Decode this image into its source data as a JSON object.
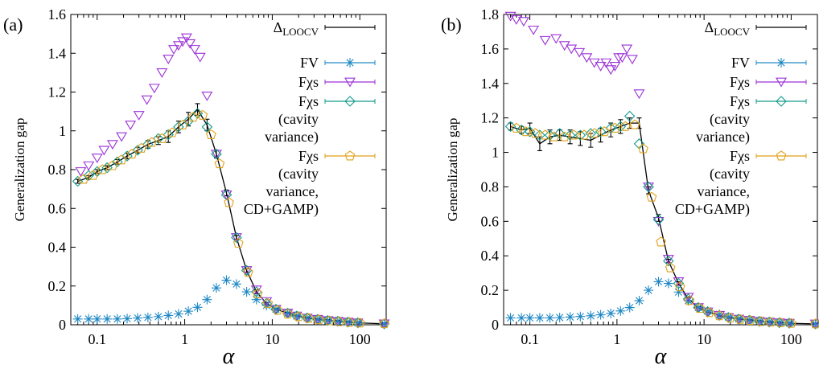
{
  "colors": {
    "loocv": "#000000",
    "fv": "#1f88c4",
    "fxs": "#9b31d6",
    "fxs_cavity": "#129b8a",
    "fxs_cdgamp": "#e2a11a"
  },
  "chart_data": [
    {
      "type": "scatter",
      "panel_label": "(a)",
      "title": "",
      "xlabel": "α",
      "ylabel": "Generalization gap",
      "xscale": "log",
      "xlim": [
        0.05,
        200
      ],
      "ylim": [
        0,
        1.6
      ],
      "xticks": [
        {
          "v": 0.1,
          "label": "0.1"
        },
        {
          "v": 1,
          "label": "1"
        },
        {
          "v": 10,
          "label": "10"
        },
        {
          "v": 100,
          "label": "100"
        }
      ],
      "yticks": [
        {
          "v": 0,
          "label": "0"
        },
        {
          "v": 0.2,
          "label": "0.2"
        },
        {
          "v": 0.4,
          "label": "0.4"
        },
        {
          "v": 0.6,
          "label": "0.6"
        },
        {
          "v": 0.8,
          "label": "0.8"
        },
        {
          "v": 1,
          "label": "1"
        },
        {
          "v": 1.2,
          "label": "1.2"
        },
        {
          "v": 1.4,
          "label": "1.4"
        },
        {
          "v": 1.6,
          "label": "1.6"
        }
      ],
      "grid": false,
      "legend_position": "top-right",
      "series": [
        {
          "name": "ΔLOOCV",
          "legend_lines": [
            "Δ",
            "LOOCV"
          ],
          "key": "loocv",
          "marker": "line",
          "x": [
            0.06,
            0.08,
            0.1,
            0.13,
            0.17,
            0.22,
            0.29,
            0.38,
            0.5,
            0.65,
            0.85,
            1.1,
            1.4,
            1.8,
            2.3,
            3,
            3.9,
            5.1,
            6.6,
            8.6,
            11,
            15,
            19,
            25,
            33,
            43,
            56,
            73,
            95,
            190
          ],
          "y": [
            0.74,
            0.76,
            0.79,
            0.81,
            0.84,
            0.87,
            0.9,
            0.93,
            0.95,
            0.97,
            1.02,
            1.06,
            1.11,
            1.03,
            0.88,
            0.68,
            0.45,
            0.28,
            0.17,
            0.11,
            0.08,
            0.06,
            0.045,
            0.035,
            0.028,
            0.022,
            0.018,
            0.014,
            0.01,
            0.005
          ],
          "err": [
            0.01,
            0.01,
            0.01,
            0.01,
            0.012,
            0.015,
            0.015,
            0.02,
            0.02,
            0.03,
            0.03,
            0.035,
            0.03,
            0.03,
            0.02,
            0.015,
            0.01,
            0.01,
            0.01,
            0.005,
            0.005,
            0.005,
            0.005,
            0.005,
            0.005,
            0.005,
            0.005,
            0.005,
            0.005,
            0.005
          ]
        },
        {
          "name": "FV",
          "legend_lines": [
            "FV"
          ],
          "key": "fv",
          "marker": "star",
          "x": [
            0.06,
            0.08,
            0.1,
            0.13,
            0.17,
            0.22,
            0.29,
            0.38,
            0.5,
            0.65,
            0.85,
            1.1,
            1.4,
            1.8,
            2.3,
            3,
            3.9,
            5.1,
            6.6,
            8.6,
            11,
            15,
            19,
            25,
            33,
            43,
            56,
            73,
            95,
            190
          ],
          "y": [
            0.03,
            0.03,
            0.03,
            0.03,
            0.03,
            0.032,
            0.035,
            0.038,
            0.042,
            0.048,
            0.056,
            0.07,
            0.09,
            0.13,
            0.19,
            0.23,
            0.21,
            0.17,
            0.13,
            0.1,
            0.08,
            0.06,
            0.045,
            0.035,
            0.028,
            0.022,
            0.018,
            0.014,
            0.01,
            0.005
          ]
        },
        {
          "name": "Fχs",
          "legend_lines": [
            "Fχs"
          ],
          "key": "fxs",
          "marker": "triangle-down",
          "x": [
            0.065,
            0.08,
            0.1,
            0.12,
            0.15,
            0.19,
            0.24,
            0.3,
            0.37,
            0.45,
            0.55,
            0.65,
            0.75,
            0.85,
            0.95,
            1.05,
            1.15,
            1.3,
            1.5,
            1.8,
            2.3,
            3,
            3.9,
            5.1,
            6.6,
            8.6,
            11,
            15,
            19,
            25,
            33,
            43,
            56,
            73,
            95,
            190
          ],
          "y": [
            0.79,
            0.82,
            0.86,
            0.9,
            0.93,
            0.97,
            1.03,
            1.08,
            1.16,
            1.22,
            1.3,
            1.37,
            1.42,
            1.44,
            1.46,
            1.48,
            1.45,
            1.42,
            1.38,
            1.18,
            0.88,
            0.67,
            0.45,
            0.28,
            0.18,
            0.12,
            0.08,
            0.06,
            0.045,
            0.035,
            0.028,
            0.022,
            0.018,
            0.014,
            0.01,
            0.005
          ]
        },
        {
          "name": "Fχs (cavity variance)",
          "legend_lines": [
            "Fχs",
            "(cavity",
            "variance)"
          ],
          "key": "fxs_cavity",
          "marker": "diamond",
          "x": [
            0.06,
            0.08,
            0.1,
            0.13,
            0.17,
            0.22,
            0.29,
            0.38,
            0.5,
            0.65,
            0.85,
            1.1,
            1.4,
            1.8,
            2.3,
            3,
            3.9,
            5.1,
            6.6,
            8.6,
            11,
            15,
            19,
            25,
            33,
            43,
            56,
            73,
            95,
            190
          ],
          "y": [
            0.74,
            0.77,
            0.79,
            0.81,
            0.84,
            0.87,
            0.9,
            0.93,
            0.96,
            0.98,
            1.02,
            1.05,
            1.09,
            1.02,
            0.88,
            0.67,
            0.45,
            0.28,
            0.17,
            0.11,
            0.08,
            0.06,
            0.045,
            0.035,
            0.028,
            0.022,
            0.018,
            0.014,
            0.01,
            0.005
          ]
        },
        {
          "name": "Fχs (cavity variance, CD+GAMP)",
          "legend_lines": [
            "Fχs",
            "(cavity",
            "variance,",
            "CD+GAMP)"
          ],
          "key": "fxs_cdgamp",
          "marker": "pentagon",
          "x": [
            0.07,
            0.09,
            0.115,
            0.15,
            0.19,
            0.25,
            0.32,
            0.42,
            0.55,
            0.72,
            0.95,
            1.25,
            1.6,
            2.0,
            2.5,
            3.2,
            4.1,
            5.3,
            6.8,
            8.9,
            11.5,
            15,
            20,
            26,
            34,
            45,
            58,
            76,
            100,
            190
          ],
          "y": [
            0.75,
            0.77,
            0.8,
            0.82,
            0.85,
            0.88,
            0.91,
            0.94,
            0.96,
            0.99,
            1.03,
            1.07,
            1.08,
            0.98,
            0.83,
            0.63,
            0.42,
            0.27,
            0.16,
            0.11,
            0.075,
            0.055,
            0.042,
            0.033,
            0.026,
            0.02,
            0.016,
            0.012,
            0.009,
            0.005
          ]
        }
      ]
    },
    {
      "type": "scatter",
      "panel_label": "(b)",
      "title": "",
      "xlabel": "α",
      "ylabel": "Generalization gap",
      "xscale": "log",
      "xlim": [
        0.05,
        200
      ],
      "ylim": [
        0,
        1.8
      ],
      "xticks": [
        {
          "v": 0.1,
          "label": "0.1"
        },
        {
          "v": 1,
          "label": "1"
        },
        {
          "v": 10,
          "label": "10"
        },
        {
          "v": 100,
          "label": "100"
        }
      ],
      "yticks": [
        {
          "v": 0,
          "label": "0"
        },
        {
          "v": 0.2,
          "label": "0.2"
        },
        {
          "v": 0.4,
          "label": "0.4"
        },
        {
          "v": 0.6,
          "label": "0.6"
        },
        {
          "v": 0.8,
          "label": "0.8"
        },
        {
          "v": 1,
          "label": "1"
        },
        {
          "v": 1.2,
          "label": "1.2"
        },
        {
          "v": 1.4,
          "label": "1.4"
        },
        {
          "v": 1.6,
          "label": "1.6"
        },
        {
          "v": 1.8,
          "label": "1.8"
        }
      ],
      "grid": false,
      "legend_position": "top-right",
      "series": [
        {
          "name": "ΔLOOCV",
          "legend_lines": [
            "Δ",
            "LOOCV"
          ],
          "key": "loocv",
          "marker": "line",
          "x": [
            0.06,
            0.08,
            0.1,
            0.13,
            0.17,
            0.22,
            0.29,
            0.38,
            0.5,
            0.65,
            0.85,
            1.1,
            1.4,
            1.8,
            2.3,
            3,
            3.9,
            5.1,
            6.6,
            8.6,
            11,
            15,
            19,
            25,
            33,
            43,
            56,
            73,
            95,
            190
          ],
          "y": [
            1.15,
            1.13,
            1.14,
            1.05,
            1.09,
            1.1,
            1.09,
            1.08,
            1.07,
            1.1,
            1.13,
            1.15,
            1.17,
            1.17,
            0.78,
            0.62,
            0.37,
            0.24,
            0.15,
            0.1,
            0.075,
            0.055,
            0.042,
            0.033,
            0.026,
            0.02,
            0.016,
            0.012,
            0.009,
            0.005
          ],
          "err": [
            0.02,
            0.02,
            0.03,
            0.04,
            0.04,
            0.03,
            0.04,
            0.04,
            0.04,
            0.04,
            0.04,
            0.04,
            0.03,
            0.03,
            0.02,
            0.02,
            0.01,
            0.01,
            0.01,
            0.005,
            0.005,
            0.005,
            0.005,
            0.005,
            0.005,
            0.005,
            0.005,
            0.005,
            0.005,
            0.005
          ]
        },
        {
          "name": "FV",
          "legend_lines": [
            "FV"
          ],
          "key": "fv",
          "marker": "star",
          "x": [
            0.06,
            0.08,
            0.1,
            0.13,
            0.17,
            0.22,
            0.29,
            0.38,
            0.5,
            0.65,
            0.85,
            1.1,
            1.4,
            1.8,
            2.3,
            3,
            3.9,
            5.1,
            6.6,
            8.6,
            11,
            15,
            19,
            25,
            33,
            43,
            56,
            73,
            95,
            190
          ],
          "y": [
            0.04,
            0.04,
            0.04,
            0.04,
            0.04,
            0.042,
            0.045,
            0.048,
            0.052,
            0.058,
            0.066,
            0.08,
            0.1,
            0.14,
            0.2,
            0.25,
            0.24,
            0.19,
            0.14,
            0.1,
            0.08,
            0.06,
            0.045,
            0.035,
            0.028,
            0.022,
            0.018,
            0.014,
            0.01,
            0.005
          ]
        },
        {
          "name": "Fχs",
          "legend_lines": [
            "Fχs"
          ],
          "key": "fxs",
          "marker": "triangle-down",
          "x": [
            0.06,
            0.07,
            0.085,
            0.11,
            0.15,
            0.2,
            0.25,
            0.3,
            0.37,
            0.45,
            0.55,
            0.65,
            0.75,
            0.85,
            0.95,
            1.05,
            1.15,
            1.3,
            1.5,
            1.8,
            2.3,
            3,
            3.9,
            5.1,
            6.6,
            8.6,
            11,
            15,
            19,
            25,
            33,
            43,
            56,
            73,
            95,
            190
          ],
          "y": [
            1.79,
            1.77,
            1.76,
            1.71,
            1.65,
            1.66,
            1.62,
            1.6,
            1.58,
            1.55,
            1.52,
            1.5,
            1.52,
            1.48,
            1.5,
            1.55,
            1.55,
            1.6,
            1.54,
            1.34,
            0.8,
            0.6,
            0.38,
            0.25,
            0.16,
            0.1,
            0.075,
            0.055,
            0.042,
            0.033,
            0.026,
            0.02,
            0.016,
            0.012,
            0.009,
            0.005
          ]
        },
        {
          "name": "Fχs (cavity variance)",
          "legend_lines": [
            "Fχs",
            "(cavity",
            "variance)"
          ],
          "key": "fxs_cavity",
          "marker": "diamond",
          "x": [
            0.06,
            0.08,
            0.1,
            0.13,
            0.17,
            0.22,
            0.29,
            0.38,
            0.5,
            0.65,
            0.85,
            1.1,
            1.4,
            1.8,
            2.3,
            3,
            3.9,
            5.1,
            6.6,
            8.6,
            11,
            15,
            19,
            25,
            33,
            43,
            56,
            73,
            95,
            190
          ],
          "y": [
            1.15,
            1.13,
            1.12,
            1.1,
            1.1,
            1.11,
            1.1,
            1.1,
            1.11,
            1.12,
            1.14,
            1.15,
            1.21,
            1.05,
            0.8,
            0.61,
            0.37,
            0.24,
            0.15,
            0.1,
            0.075,
            0.055,
            0.042,
            0.033,
            0.026,
            0.02,
            0.016,
            0.012,
            0.009,
            0.005
          ]
        },
        {
          "name": "Fχs (cavity variance, CD+GAMP)",
          "legend_lines": [
            "Fχs",
            "(cavity",
            "variance,",
            "CD+GAMP)"
          ],
          "key": "fxs_cdgamp",
          "marker": "pentagon",
          "x": [
            0.07,
            0.09,
            0.115,
            0.15,
            0.19,
            0.25,
            0.32,
            0.42,
            0.55,
            0.72,
            0.95,
            1.25,
            1.6,
            2.0,
            2.5,
            3.2,
            4.1,
            5.3,
            6.8,
            8.9,
            11.5,
            15,
            20,
            26,
            34,
            45,
            58,
            76,
            100,
            190
          ],
          "y": [
            1.14,
            1.12,
            1.11,
            1.1,
            1.09,
            1.09,
            1.1,
            1.1,
            1.11,
            1.12,
            1.14,
            1.15,
            1.16,
            1.02,
            0.74,
            0.48,
            0.33,
            0.22,
            0.14,
            0.095,
            0.07,
            0.052,
            0.04,
            0.031,
            0.025,
            0.019,
            0.015,
            0.011,
            0.008,
            0.005
          ]
        }
      ]
    }
  ]
}
